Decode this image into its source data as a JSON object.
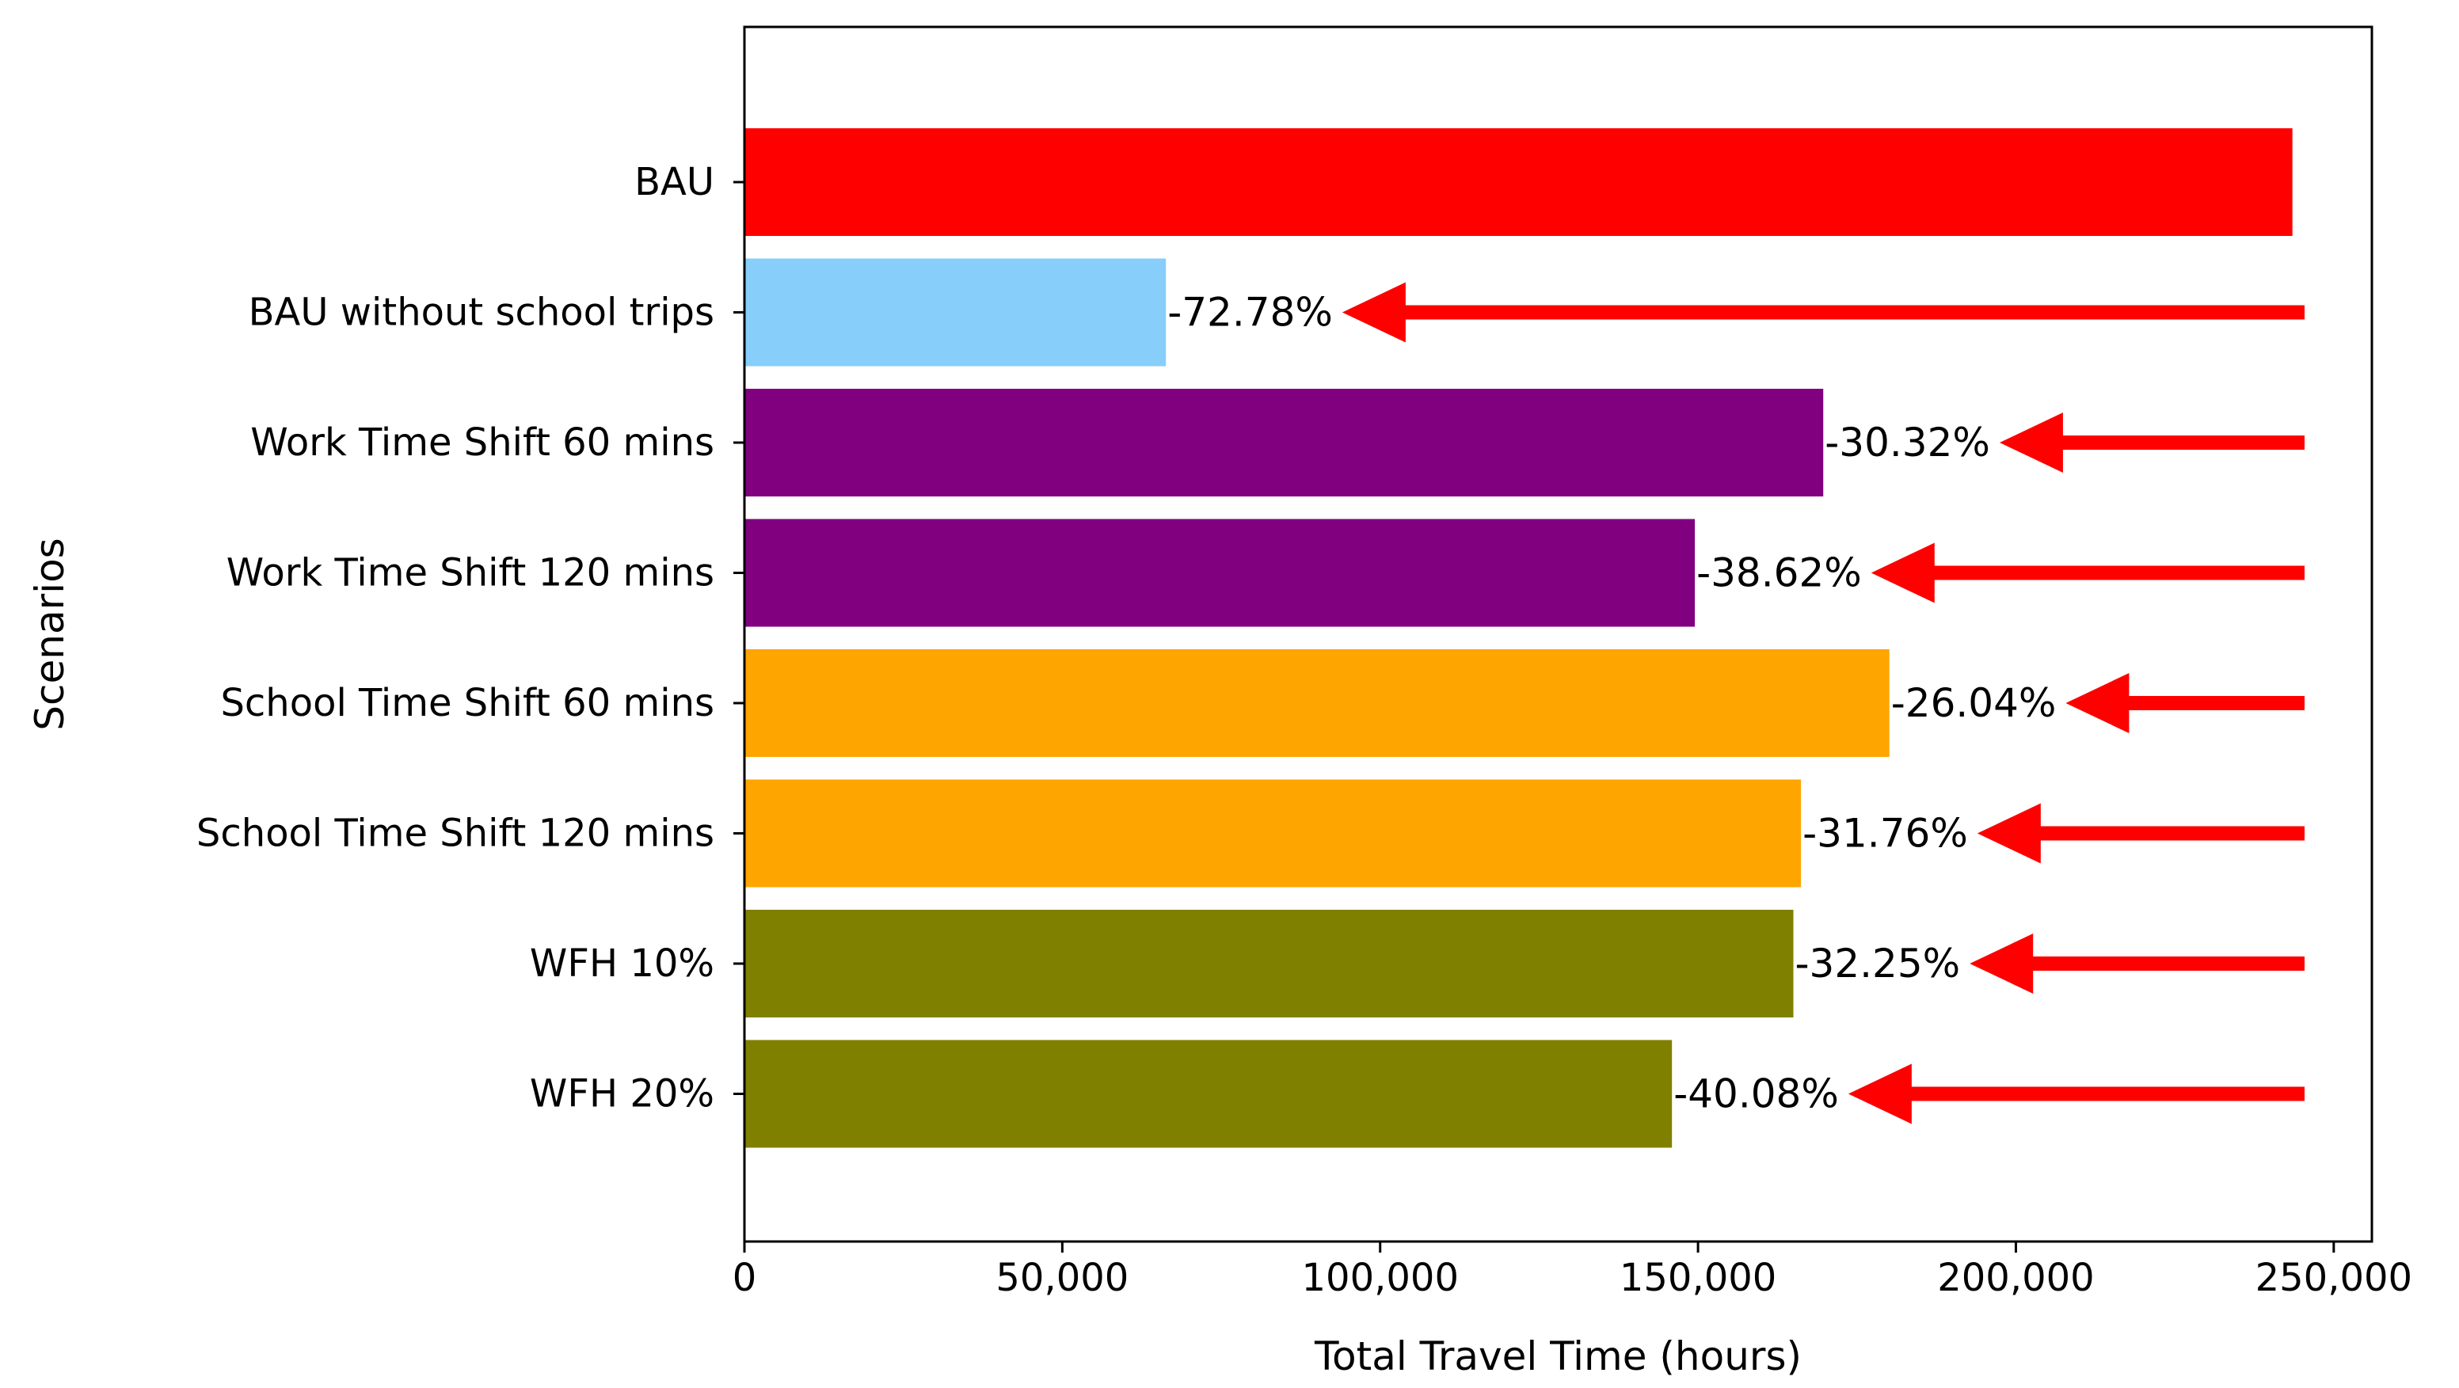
{
  "chart_data": {
    "type": "bar",
    "orientation": "horizontal",
    "xlabel": "Total Travel Time (hours)",
    "ylabel": "Scenarios",
    "xlim": [
      0,
      256000
    ],
    "x_ticks": [
      {
        "value": 0,
        "label": "0"
      },
      {
        "value": 50000,
        "label": "50,000"
      },
      {
        "value": 100000,
        "label": "100,000"
      },
      {
        "value": 150000,
        "label": "150,000"
      },
      {
        "value": 200000,
        "label": "200,000"
      },
      {
        "value": 250000,
        "label": "250,000"
      }
    ],
    "grid": false,
    "legend": "none",
    "arrow_color": "#ff0000",
    "bars": [
      {
        "category": "BAU",
        "value": 243500,
        "color": "#ff0000",
        "label": ""
      },
      {
        "category": "BAU without school trips",
        "value": 66300,
        "color": "#87cefa",
        "label": "-72.78%"
      },
      {
        "category": "Work Time Shift 60 mins",
        "value": 169700,
        "color": "#800080",
        "label": "-30.32%"
      },
      {
        "category": "Work Time Shift 120 mins",
        "value": 149500,
        "color": "#800080",
        "label": "-38.62%"
      },
      {
        "category": "School Time Shift 60 mins",
        "value": 180100,
        "color": "#ffa500",
        "label": "-26.04%"
      },
      {
        "category": "School Time Shift 120 mins",
        "value": 166200,
        "color": "#ffa500",
        "label": "-31.76%"
      },
      {
        "category": "WFH 10%",
        "value": 165000,
        "color": "#808000",
        "label": "-32.25%"
      },
      {
        "category": "WFH 20%",
        "value": 145900,
        "color": "#808000",
        "label": "-40.08%"
      }
    ]
  }
}
